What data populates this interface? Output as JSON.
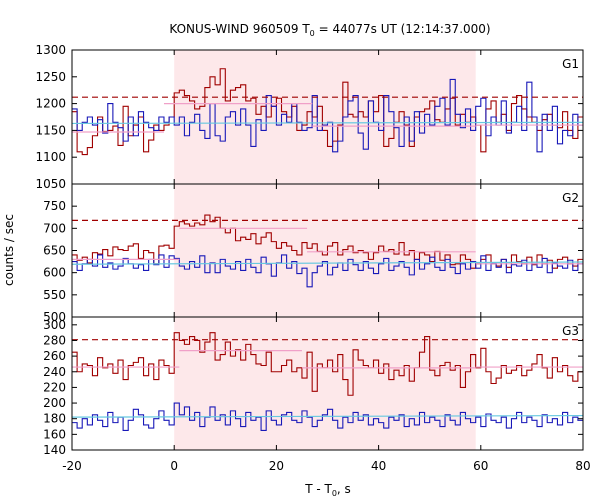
{
  "chart_data": {
    "type": "line",
    "title_main": "KONUS-WIND 960509 T",
    "title_sub": "0",
    "title_tail": " = 44077s UT (12:14:37.000)",
    "ylabel": "counts / sec",
    "xlabel_main": "T - T",
    "xlabel_sub": "0",
    "xlabel_tail": ", s",
    "xlim": [
      -20,
      80
    ],
    "xticks": [
      -20,
      0,
      20,
      40,
      60,
      80
    ],
    "highlight_interval": [
      0,
      59
    ],
    "colors": {
      "highlight": "#fde8ea",
      "high_channel": "#a00000",
      "low_channel": "#1818b8",
      "background_fit": "#66c8e0",
      "mean_level": "#f0a0c8",
      "threshold": "#a00000"
    },
    "panels": [
      {
        "label": "G1",
        "ylim": [
          1050,
          1300
        ],
        "yticks": [
          1050,
          1100,
          1150,
          1200,
          1250,
          1300
        ],
        "threshold": 1212,
        "background_fit": [
          1163,
          1165
        ],
        "mean_levels": [
          {
            "x": [
              -20,
              -2
            ],
            "y": 1147
          },
          {
            "x": [
              -2,
              27
            ],
            "y": 1200
          },
          {
            "x": [
              27,
              59
            ],
            "y": 1158
          },
          {
            "x": [
              59,
              80
            ],
            "y": 1160
          }
        ],
        "series": [
          {
            "color_key": "high_channel",
            "x_start": -20,
            "dx": 1,
            "values": [
              1185,
              1110,
              1105,
              1118,
              1140,
              1175,
              1148,
              1150,
              1158,
              1122,
              1195,
              1140,
              1160,
              1175,
              1110,
              1132,
              1160,
              1150,
              1160,
              1175,
              1220,
              1225,
              1215,
              1205,
              1190,
              1195,
              1230,
              1250,
              1235,
              1265,
              1205,
              1225,
              1230,
              1235,
              1205,
              1210,
              1180,
              1195,
              1175,
              1195,
              1210,
              1185,
              1175,
              1195,
              1150,
              1160,
              1185,
              1175,
              1195,
              1150,
              1120,
              1130,
              1160,
              1240,
              1180,
              1175,
              1185,
              1175,
              1205,
              1185,
              1215,
              1120,
              1135,
              1165,
              1185,
              1160,
              1120,
              1175,
              1185,
              1190,
              1205,
              1170,
              1165,
              1190,
              1210,
              1160,
              1180,
              1165,
              1175,
              1160,
              1110,
              1190,
              1205,
              1165,
              1180,
              1150,
              1200,
              1215,
              1190,
              1175,
              1165,
              1150,
              1170,
              1180,
              1160,
              1155,
              1185,
              1150,
              1135,
              1175
            ]
          },
          {
            "color_key": "low_channel",
            "x_start": -20,
            "dx": 1,
            "values": [
              1190,
              1150,
              1165,
              1175,
              1160,
              1170,
              1145,
              1200,
              1165,
              1155,
              1130,
              1175,
              1140,
              1185,
              1165,
              1155,
              1150,
              1175,
              1165,
              1175,
              1160,
              1175,
              1140,
              1165,
              1180,
              1150,
              1135,
              1200,
              1140,
              1130,
              1175,
              1185,
              1160,
              1190,
              1160,
              1120,
              1170,
              1150,
              1215,
              1195,
              1160,
              1180,
              1165,
              1200,
              1165,
              1150,
              1155,
              1215,
              1150,
              1160,
              1165,
              1110,
              1130,
              1175,
              1205,
              1215,
              1145,
              1115,
              1205,
              1165,
              1150,
              1215,
              1185,
              1155,
              1120,
              1175,
              1130,
              1185,
              1145,
              1180,
              1160,
              1195,
              1210,
              1160,
              1245,
              1180,
              1155,
              1190,
              1150,
              1195,
              1210,
              1140,
              1175,
              1160,
              1205,
              1145,
              1165,
              1195,
              1150,
              1240,
              1175,
              1110,
              1180,
              1150,
              1195,
              1125,
              1150,
              1140,
              1180,
              1160
            ]
          }
        ]
      },
      {
        "label": "G2",
        "ylim": [
          500,
          800
        ],
        "yticks": [
          500,
          550,
          600,
          650,
          700,
          750
        ],
        "threshold": 718,
        "background_fit": [
          619,
          624
        ],
        "mean_levels": [
          {
            "x": [
              -20,
              1
            ],
            "y": 630
          },
          {
            "x": [
              1,
              26
            ],
            "y": 700
          },
          {
            "x": [
              26,
              59
            ],
            "y": 647
          },
          {
            "x": [
              59,
              80
            ],
            "y": 620
          }
        ],
        "series": [
          {
            "color_key": "high_channel",
            "x_start": -20,
            "dx": 1,
            "values": [
              640,
              628,
              635,
              622,
              645,
              642,
              652,
              638,
              658,
              652,
              650,
              660,
              665,
              632,
              650,
              645,
              620,
              660,
              662,
              655,
              705,
              715,
              710,
              705,
              712,
              708,
              730,
              715,
              725,
              700,
              690,
              700,
              672,
              680,
              675,
              688,
              665,
              680,
              690,
              670,
              655,
              668,
              660,
              650,
              640,
              668,
              655,
              665,
              648,
              640,
              660,
              668,
              640,
              652,
              660,
              645,
              650,
              645,
              630,
              645,
              660,
              648,
              652,
              642,
              668,
              640,
              650,
              630,
              645,
              640,
              625,
              648,
              628,
              640,
              618,
              620,
              640,
              630,
              610,
              620,
              630,
              640,
              620,
              615,
              630,
              612,
              640,
              625,
              620,
              635,
              618,
              640,
              620,
              628,
              610,
              630,
              635,
              620,
              615,
              630
            ]
          },
          {
            "color_key": "low_channel",
            "x_start": -20,
            "dx": 1,
            "values": [
              625,
              605,
              620,
              630,
              615,
              640,
              612,
              622,
              608,
              615,
              632,
              620,
              610,
              618,
              605,
              630,
              618,
              640,
              612,
              638,
              632,
              615,
              608,
              625,
              612,
              638,
              600,
              622,
              600,
              630,
              615,
              608,
              625,
              605,
              630,
              612,
              600,
              635,
              620,
              592,
              622,
              640,
              610,
              625,
              598,
              610,
              568,
              600,
              615,
              625,
              595,
              612,
              622,
              605,
              630,
              618,
              605,
              625,
              610,
              598,
              620,
              632,
              605,
              615,
              625,
              612,
              595,
              630,
              608,
              620,
              635,
              612,
              605,
              630,
              612,
              598,
              620,
              608,
              625,
              610,
              638,
              605,
              622,
              612,
              630,
              600,
              618,
              615,
              628,
              605,
              620,
              612,
              632,
              600,
              622,
              615,
              610,
              628,
              605,
              620
            ]
          }
        ]
      },
      {
        "label": "G3",
        "ylim": [
          140,
          310
        ],
        "yticks": [
          140,
          160,
          180,
          200,
          220,
          240,
          260,
          280,
          300
        ],
        "threshold": 281,
        "background_fit": [
          182,
          184
        ],
        "mean_levels": [
          {
            "x": [
              -20,
              1
            ],
            "y": 246
          },
          {
            "x": [
              1,
              25
            ],
            "y": 267
          },
          {
            "x": [
              25,
              59
            ],
            "y": 245
          },
          {
            "x": [
              59,
              80
            ],
            "y": 246
          }
        ],
        "series": [
          {
            "color_key": "high_channel",
            "x_start": -20,
            "dx": 1,
            "values": [
              265,
              240,
              250,
              248,
              235,
              258,
              245,
              250,
              238,
              255,
              230,
              248,
              252,
              258,
              235,
              250,
              230,
              255,
              248,
              238,
              290,
              280,
              275,
              285,
              280,
              265,
              278,
              290,
              255,
              262,
              278,
              260,
              268,
              255,
              275,
              262,
              250,
              248,
              265,
              240,
              240,
              248,
              255,
              240,
              245,
              232,
              265,
              215,
              250,
              245,
              255,
              240,
              262,
              230,
              210,
              268,
              255,
              248,
              245,
              255,
              238,
              250,
              230,
              242,
              235,
              248,
              228,
              245,
              265,
              285,
              242,
              235,
              248,
              252,
              242,
              248,
              220,
              240,
              262,
              245,
              270,
              240,
              225,
              232,
              248,
              238,
              242,
              248,
              235,
              242,
              250,
              262,
              245,
              232,
              258,
              240,
              248,
              235,
              228,
              240
            ]
          },
          {
            "color_key": "low_channel",
            "x_start": -20,
            "dx": 1,
            "values": [
              175,
              168,
              180,
              172,
              185,
              178,
              170,
              188,
              175,
              182,
              165,
              178,
              192,
              185,
              172,
              168,
              180,
              190,
              178,
              172,
              200,
              185,
              195,
              178,
              188,
              170,
              182,
              195,
              178,
              185,
              172,
              190,
              180,
              170,
              188,
              178,
              182,
              165,
              190,
              178,
              172,
              185,
              188,
              178,
              175,
              190,
              182,
              170,
              178,
              185,
              192,
              178,
              168,
              182,
              175,
              188,
              178,
              185,
              172,
              180,
              175,
              168,
              182,
              178,
              185,
              170,
              180,
              172,
              188,
              175,
              182,
              178,
              170,
              185,
              178,
              172,
              188,
              180,
              175,
              182,
              170,
              186,
              178,
              175,
              182,
              168,
              180,
              188,
              175,
              182,
              178,
              170,
              185,
              175,
              180,
              172,
              188,
              175,
              182,
              178
            ]
          }
        ]
      }
    ]
  }
}
